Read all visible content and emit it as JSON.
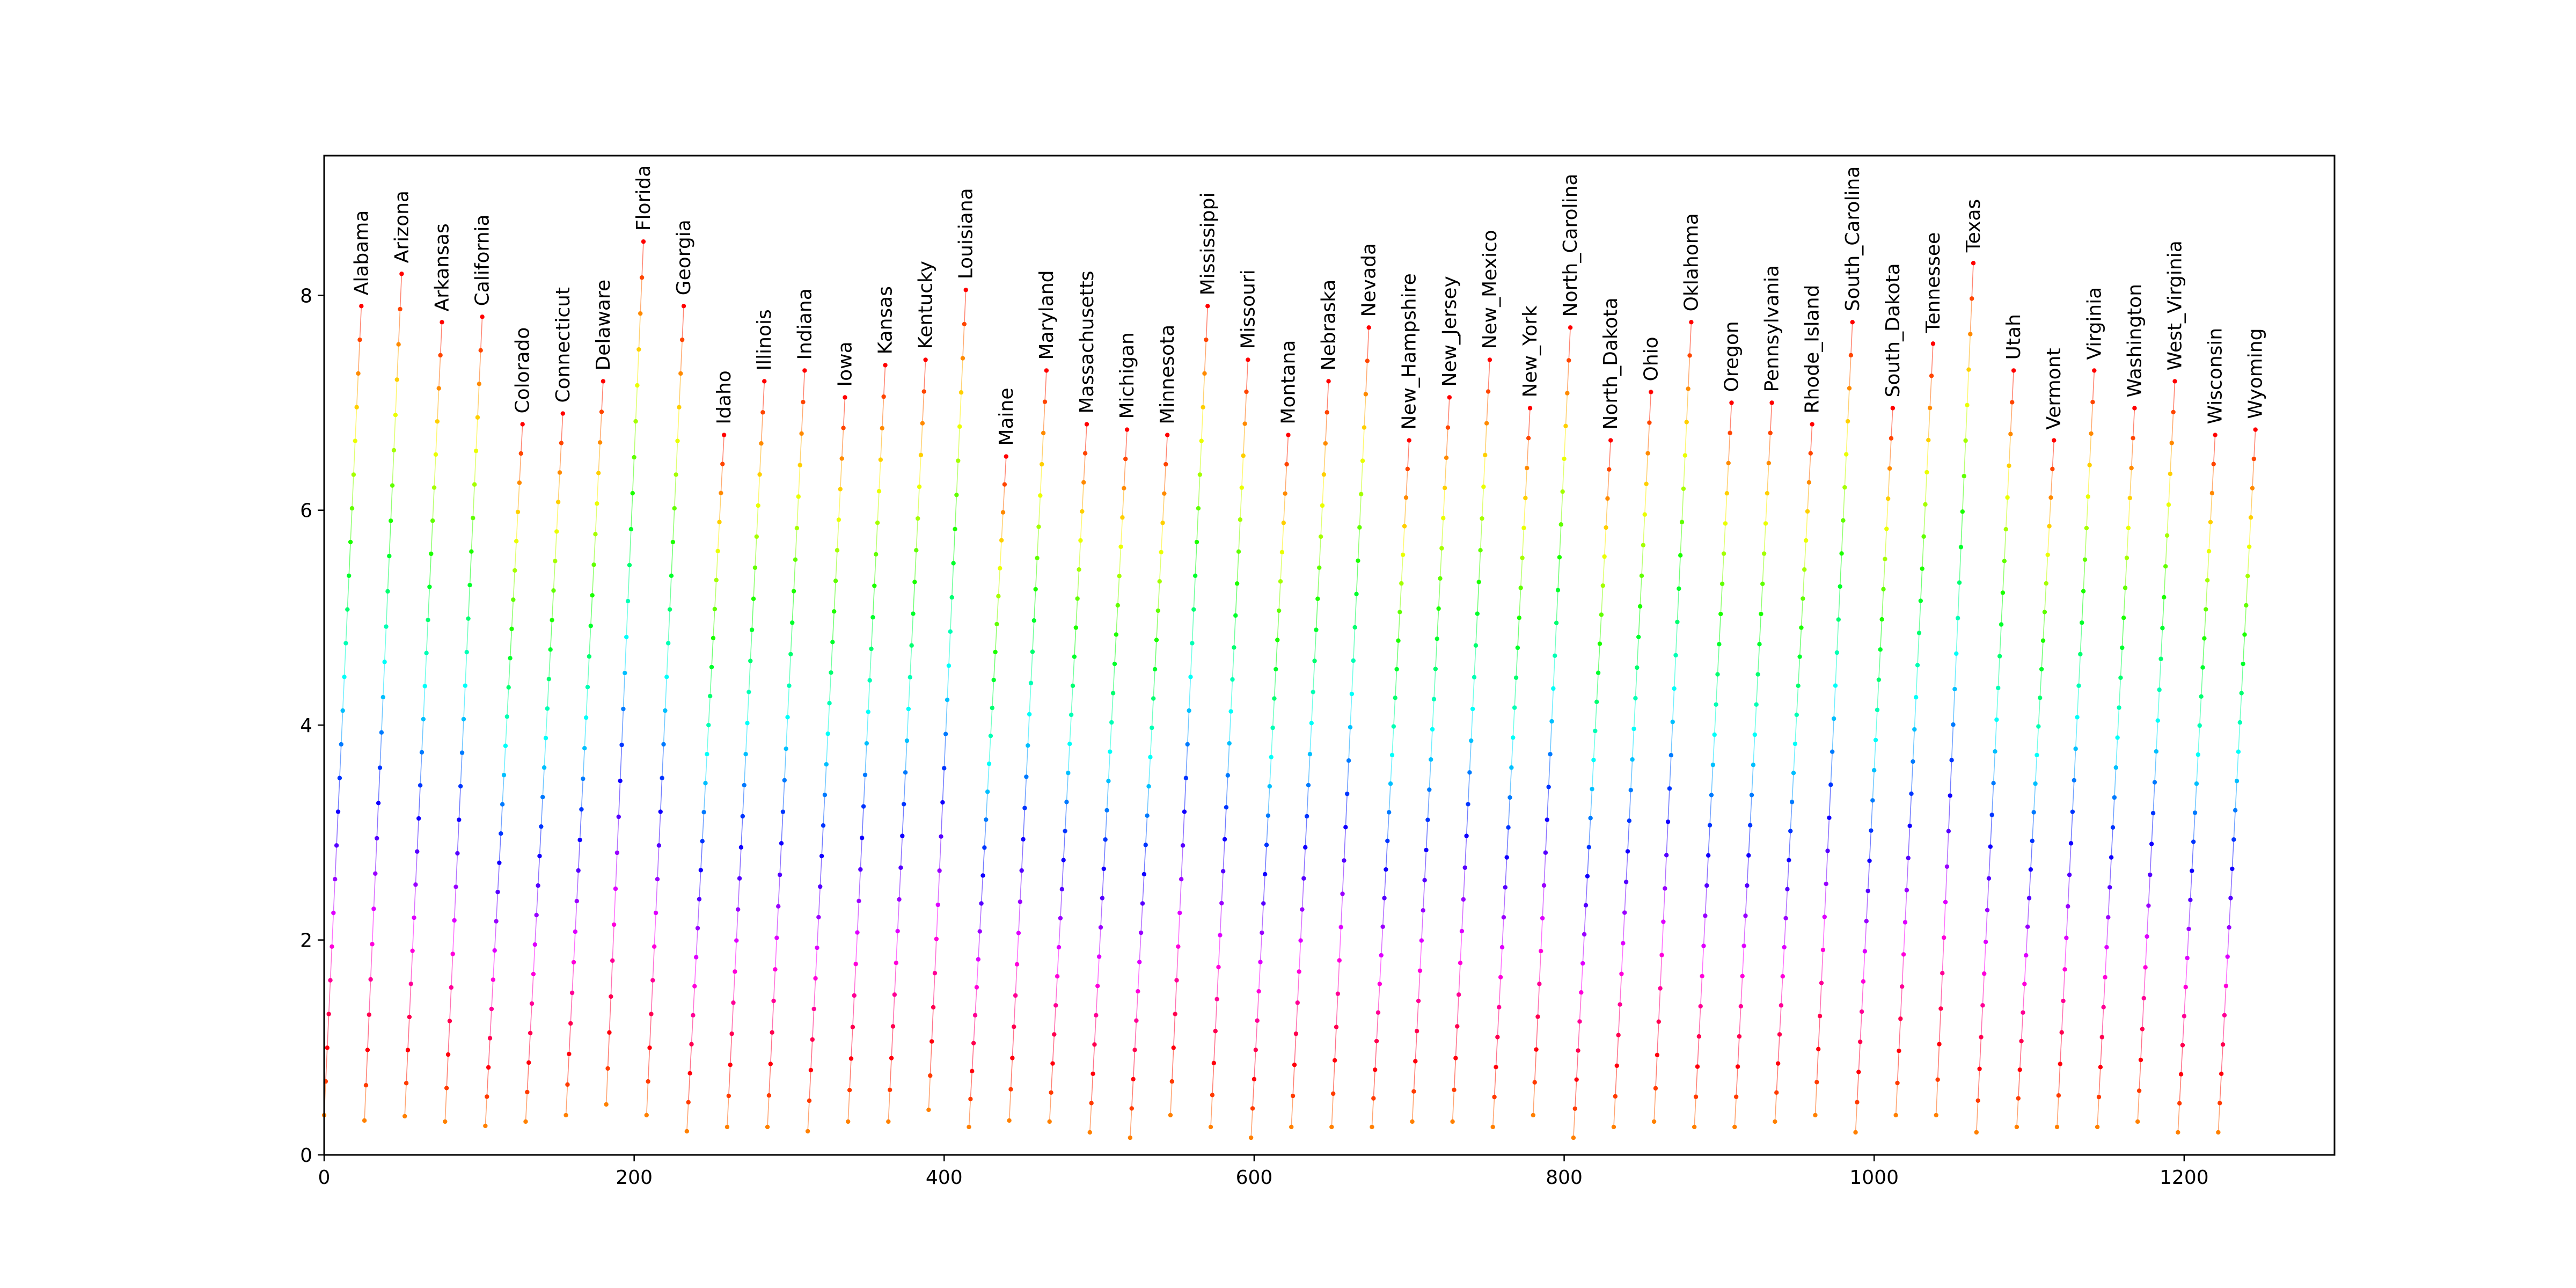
{
  "chart_data": {
    "type": "scatter",
    "title": "",
    "xlabel": "",
    "ylabel": "",
    "xlim": [
      0,
      1297
    ],
    "ylim": [
      0,
      9.3
    ],
    "grid": false,
    "x_ticks": [
      0,
      200,
      400,
      600,
      800,
      1000,
      1200
    ],
    "y_ticks": [
      0,
      2,
      4,
      6,
      8
    ],
    "x_tick_labels": [
      "0",
      "200",
      "400",
      "600",
      "800",
      "1000",
      "1200"
    ],
    "y_tick_labels": [
      "0",
      "2",
      "4",
      "6",
      "8"
    ],
    "colormap": "hsv (orange at bottom through yellow, green, cyan, blue, magenta to red at top)",
    "points_per_series": 25,
    "series": [
      {
        "name": "Alabama",
        "x_start": 0,
        "min": 0.37,
        "max": 7.9
      },
      {
        "name": "Arizona",
        "x_start": 26,
        "min": 0.32,
        "max": 8.2
      },
      {
        "name": "Arkansas",
        "x_start": 52,
        "min": 0.36,
        "max": 7.75
      },
      {
        "name": "California",
        "x_start": 78,
        "min": 0.31,
        "max": 7.8
      },
      {
        "name": "Colorado",
        "x_start": 104,
        "min": 0.27,
        "max": 6.8
      },
      {
        "name": "Connecticut",
        "x_start": 130,
        "min": 0.31,
        "max": 6.9
      },
      {
        "name": "Delaware",
        "x_start": 156,
        "min": 0.37,
        "max": 7.2
      },
      {
        "name": "Florida",
        "x_start": 182,
        "min": 0.47,
        "max": 8.5
      },
      {
        "name": "Georgia",
        "x_start": 208,
        "min": 0.37,
        "max": 7.9
      },
      {
        "name": "Idaho",
        "x_start": 234,
        "min": 0.22,
        "max": 6.7
      },
      {
        "name": "Illinois",
        "x_start": 260,
        "min": 0.26,
        "max": 7.2
      },
      {
        "name": "Indiana",
        "x_start": 286,
        "min": 0.26,
        "max": 7.3
      },
      {
        "name": "Iowa",
        "x_start": 312,
        "min": 0.22,
        "max": 7.05
      },
      {
        "name": "Kansas",
        "x_start": 338,
        "min": 0.31,
        "max": 7.35
      },
      {
        "name": "Kentucky",
        "x_start": 364,
        "min": 0.31,
        "max": 7.4
      },
      {
        "name": "Louisiana",
        "x_start": 390,
        "min": 0.42,
        "max": 8.05
      },
      {
        "name": "Maine",
        "x_start": 416,
        "min": 0.26,
        "max": 6.5
      },
      {
        "name": "Maryland",
        "x_start": 442,
        "min": 0.32,
        "max": 7.3
      },
      {
        "name": "Massachusetts",
        "x_start": 468,
        "min": 0.31,
        "max": 6.8
      },
      {
        "name": "Michigan",
        "x_start": 494,
        "min": 0.21,
        "max": 6.75
      },
      {
        "name": "Minnesota",
        "x_start": 520,
        "min": 0.16,
        "max": 6.7
      },
      {
        "name": "Mississippi",
        "x_start": 546,
        "min": 0.37,
        "max": 7.9
      },
      {
        "name": "Missouri",
        "x_start": 572,
        "min": 0.26,
        "max": 7.4
      },
      {
        "name": "Montana",
        "x_start": 598,
        "min": 0.16,
        "max": 6.7
      },
      {
        "name": "Nebraska",
        "x_start": 624,
        "min": 0.26,
        "max": 7.2
      },
      {
        "name": "Nevada",
        "x_start": 650,
        "min": 0.26,
        "max": 7.7
      },
      {
        "name": "New_Hampshire",
        "x_start": 676,
        "min": 0.26,
        "max": 6.65
      },
      {
        "name": "New_Jersey",
        "x_start": 702,
        "min": 0.31,
        "max": 7.05
      },
      {
        "name": "New_Mexico",
        "x_start": 728,
        "min": 0.31,
        "max": 7.4
      },
      {
        "name": "New_York",
        "x_start": 754,
        "min": 0.26,
        "max": 6.95
      },
      {
        "name": "North_Carolina",
        "x_start": 780,
        "min": 0.37,
        "max": 7.7
      },
      {
        "name": "North_Dakota",
        "x_start": 806,
        "min": 0.16,
        "max": 6.65
      },
      {
        "name": "Ohio",
        "x_start": 832,
        "min": 0.26,
        "max": 7.1
      },
      {
        "name": "Oklahoma",
        "x_start": 858,
        "min": 0.31,
        "max": 7.75
      },
      {
        "name": "Oregon",
        "x_start": 884,
        "min": 0.26,
        "max": 7.0
      },
      {
        "name": "Pennsylvania",
        "x_start": 910,
        "min": 0.26,
        "max": 7.0
      },
      {
        "name": "Rhode_Island",
        "x_start": 936,
        "min": 0.31,
        "max": 6.8
      },
      {
        "name": "South_Carolina",
        "x_start": 962,
        "min": 0.37,
        "max": 7.75
      },
      {
        "name": "South_Dakota",
        "x_start": 988,
        "min": 0.21,
        "max": 6.95
      },
      {
        "name": "Tennessee",
        "x_start": 1014,
        "min": 0.37,
        "max": 7.55
      },
      {
        "name": "Texas",
        "x_start": 1040,
        "min": 0.37,
        "max": 8.3
      },
      {
        "name": "Utah",
        "x_start": 1066,
        "min": 0.21,
        "max": 7.3
      },
      {
        "name": "Vermont",
        "x_start": 1092,
        "min": 0.26,
        "max": 6.65
      },
      {
        "name": "Virginia",
        "x_start": 1118,
        "min": 0.26,
        "max": 7.3
      },
      {
        "name": "Washington",
        "x_start": 1144,
        "min": 0.26,
        "max": 6.95
      },
      {
        "name": "West_Virginia",
        "x_start": 1170,
        "min": 0.31,
        "max": 7.2
      },
      {
        "name": "Wisconsin",
        "x_start": 1196,
        "min": 0.21,
        "max": 6.7
      },
      {
        "name": "Wyoming",
        "x_start": 1222,
        "min": 0.21,
        "max": 6.75
      }
    ]
  }
}
